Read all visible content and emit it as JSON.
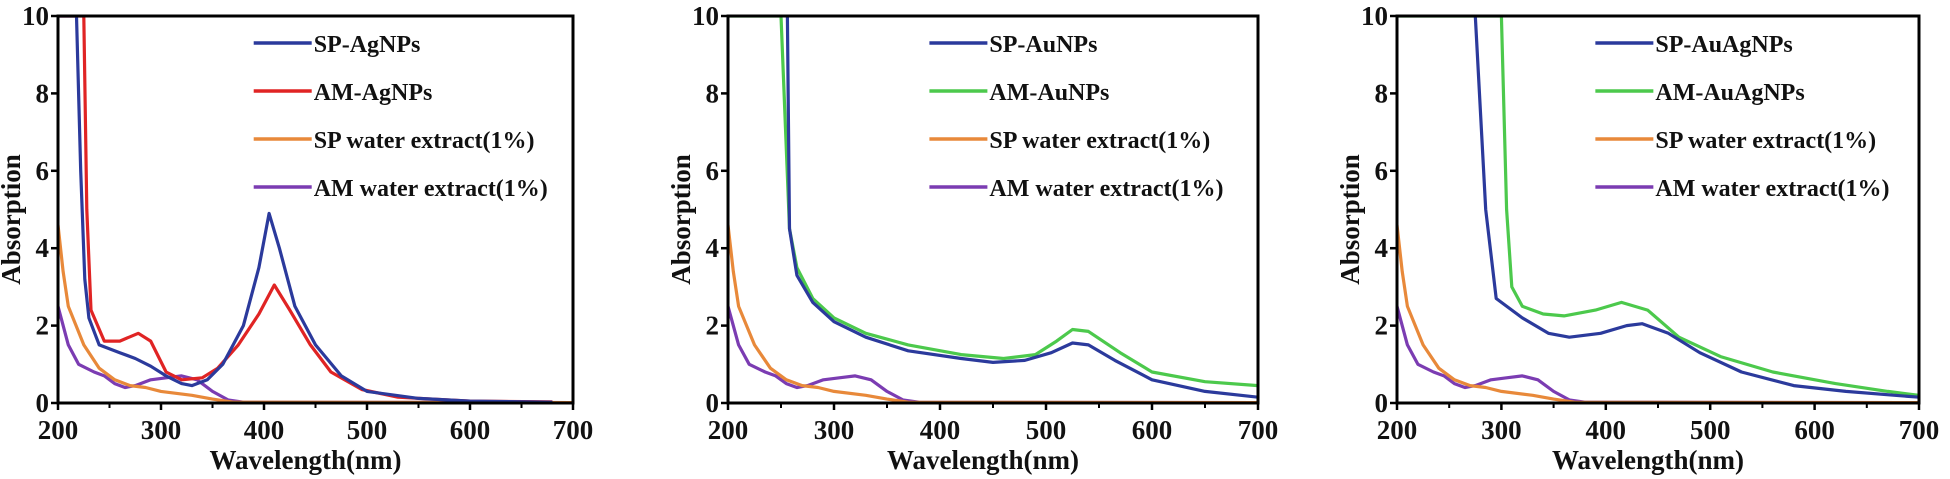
{
  "chart_data": [
    {
      "type": "line",
      "xlabel": "Wavelength(nm)",
      "ylabel": "Absorption",
      "xlim": [
        200,
        700
      ],
      "ylim": [
        0,
        10
      ],
      "xticks": [
        200,
        300,
        400,
        500,
        600,
        700
      ],
      "yticks": [
        0,
        2,
        4,
        6,
        8,
        10
      ],
      "grid": false,
      "legend_position": "top-right",
      "series": [
        {
          "name": "SP-AgNPs",
          "color": "#2b3a9c",
          "x": [
            200,
            218,
            222,
            226,
            230,
            240,
            260,
            275,
            290,
            305,
            320,
            330,
            345,
            360,
            380,
            395,
            405,
            415,
            430,
            450,
            475,
            500,
            550,
            600,
            680
          ],
          "y": [
            10,
            10,
            6,
            3.2,
            2.2,
            1.5,
            1.3,
            1.15,
            0.95,
            0.7,
            0.5,
            0.45,
            0.6,
            1.0,
            2.0,
            3.5,
            4.9,
            4.0,
            2.5,
            1.5,
            0.7,
            0.3,
            0.12,
            0.05,
            0.02
          ]
        },
        {
          "name": "AM-AgNPs",
          "color": "#e02424",
          "x": [
            200,
            225,
            228,
            232,
            245,
            260,
            278,
            290,
            305,
            320,
            340,
            355,
            375,
            395,
            410,
            425,
            445,
            465,
            495,
            530,
            600,
            680
          ],
          "y": [
            10,
            10,
            5,
            2.4,
            1.6,
            1.6,
            1.8,
            1.6,
            0.8,
            0.6,
            0.65,
            0.9,
            1.5,
            2.3,
            3.05,
            2.4,
            1.5,
            0.8,
            0.35,
            0.15,
            0.05,
            0.03
          ]
        },
        {
          "name": "SP water extract(1%)",
          "color": "#e8893a",
          "x": [
            200,
            205,
            210,
            225,
            240,
            255,
            270,
            285,
            300,
            330,
            350,
            370,
            700
          ],
          "y": [
            4.6,
            3.4,
            2.5,
            1.5,
            0.9,
            0.6,
            0.45,
            0.4,
            0.3,
            0.2,
            0.1,
            0.02,
            0.01
          ]
        },
        {
          "name": "AM water extract(1%)",
          "color": "#7b3cb2",
          "x": [
            200,
            210,
            220,
            235,
            245,
            255,
            265,
            275,
            290,
            305,
            320,
            335,
            350,
            365,
            380,
            700
          ],
          "y": [
            2.5,
            1.5,
            1.0,
            0.8,
            0.7,
            0.5,
            0.4,
            0.45,
            0.6,
            0.65,
            0.7,
            0.6,
            0.3,
            0.08,
            0.02,
            0.01
          ]
        }
      ]
    },
    {
      "type": "line",
      "xlabel": "Wavelength(nm)",
      "ylabel": "Absorption",
      "xlim": [
        200,
        700
      ],
      "ylim": [
        0,
        10
      ],
      "xticks": [
        200,
        300,
        400,
        500,
        600,
        700
      ],
      "yticks": [
        0,
        2,
        4,
        6,
        8,
        10
      ],
      "grid": false,
      "legend_position": "top-right",
      "series": [
        {
          "name": "SP-AuNPs",
          "color": "#2b3a9c",
          "x": [
            256,
            258,
            265,
            280,
            300,
            330,
            370,
            420,
            450,
            480,
            505,
            525,
            540,
            565,
            600,
            650,
            700
          ],
          "y": [
            10,
            4.5,
            3.3,
            2.6,
            2.1,
            1.7,
            1.35,
            1.15,
            1.05,
            1.1,
            1.3,
            1.55,
            1.5,
            1.1,
            0.6,
            0.3,
            0.15
          ]
        },
        {
          "name": "AM-AuNPs",
          "color": "#4cc94c",
          "x": [
            200,
            250,
            258,
            265,
            280,
            300,
            330,
            370,
            420,
            460,
            490,
            510,
            525,
            540,
            570,
            600,
            650,
            700
          ],
          "y": [
            10,
            10,
            4.5,
            3.5,
            2.7,
            2.2,
            1.8,
            1.5,
            1.25,
            1.15,
            1.25,
            1.6,
            1.9,
            1.85,
            1.3,
            0.8,
            0.55,
            0.45
          ]
        },
        {
          "name": "SP water extract(1%)",
          "color": "#e8893a",
          "x": [
            200,
            205,
            210,
            225,
            240,
            255,
            270,
            285,
            300,
            330,
            350,
            370,
            700
          ],
          "y": [
            4.6,
            3.4,
            2.5,
            1.5,
            0.9,
            0.6,
            0.45,
            0.4,
            0.3,
            0.2,
            0.1,
            0.02,
            0.01
          ]
        },
        {
          "name": "AM water extract(1%)",
          "color": "#7b3cb2",
          "x": [
            200,
            210,
            220,
            235,
            245,
            255,
            265,
            275,
            290,
            305,
            320,
            335,
            350,
            365,
            380,
            700
          ],
          "y": [
            2.5,
            1.5,
            1.0,
            0.8,
            0.7,
            0.5,
            0.4,
            0.45,
            0.6,
            0.65,
            0.7,
            0.6,
            0.3,
            0.08,
            0.02,
            0.01
          ]
        }
      ]
    },
    {
      "type": "line",
      "xlabel": "Wavelength(nm)",
      "ylabel": "Absorption",
      "xlim": [
        200,
        700
      ],
      "ylim": [
        0,
        10
      ],
      "xticks": [
        200,
        300,
        400,
        500,
        600,
        700
      ],
      "yticks": [
        0,
        2,
        4,
        6,
        8,
        10
      ],
      "grid": false,
      "legend_position": "top-right",
      "series": [
        {
          "name": "SP-AuAgNPs",
          "color": "#2b3a9c",
          "x": [
            275,
            285,
            295,
            320,
            345,
            365,
            395,
            420,
            435,
            460,
            490,
            530,
            580,
            630,
            700
          ],
          "y": [
            10,
            5,
            2.7,
            2.2,
            1.8,
            1.7,
            1.8,
            2.0,
            2.05,
            1.8,
            1.3,
            0.8,
            0.45,
            0.3,
            0.15
          ]
        },
        {
          "name": "AM-AuAgNPs",
          "color": "#4cc94c",
          "x": [
            200,
            300,
            305,
            310,
            320,
            340,
            360,
            390,
            415,
            440,
            470,
            510,
            560,
            620,
            670,
            700
          ],
          "y": [
            10,
            10,
            5,
            3,
            2.5,
            2.3,
            2.25,
            2.4,
            2.6,
            2.4,
            1.7,
            1.2,
            0.8,
            0.5,
            0.3,
            0.2
          ]
        },
        {
          "name": "SP water extract(1%)",
          "color": "#e8893a",
          "x": [
            200,
            205,
            210,
            225,
            240,
            255,
            270,
            285,
            300,
            330,
            350,
            370,
            700
          ],
          "y": [
            4.6,
            3.4,
            2.5,
            1.5,
            0.9,
            0.6,
            0.45,
            0.4,
            0.3,
            0.2,
            0.1,
            0.02,
            0.01
          ]
        },
        {
          "name": "AM water extract(1%)",
          "color": "#7b3cb2",
          "x": [
            200,
            210,
            220,
            235,
            245,
            255,
            265,
            275,
            290,
            305,
            320,
            335,
            350,
            365,
            380,
            700
          ],
          "y": [
            2.5,
            1.5,
            1.0,
            0.8,
            0.7,
            0.5,
            0.4,
            0.45,
            0.6,
            0.65,
            0.7,
            0.6,
            0.3,
            0.08,
            0.02,
            0.01
          ]
        }
      ]
    }
  ]
}
